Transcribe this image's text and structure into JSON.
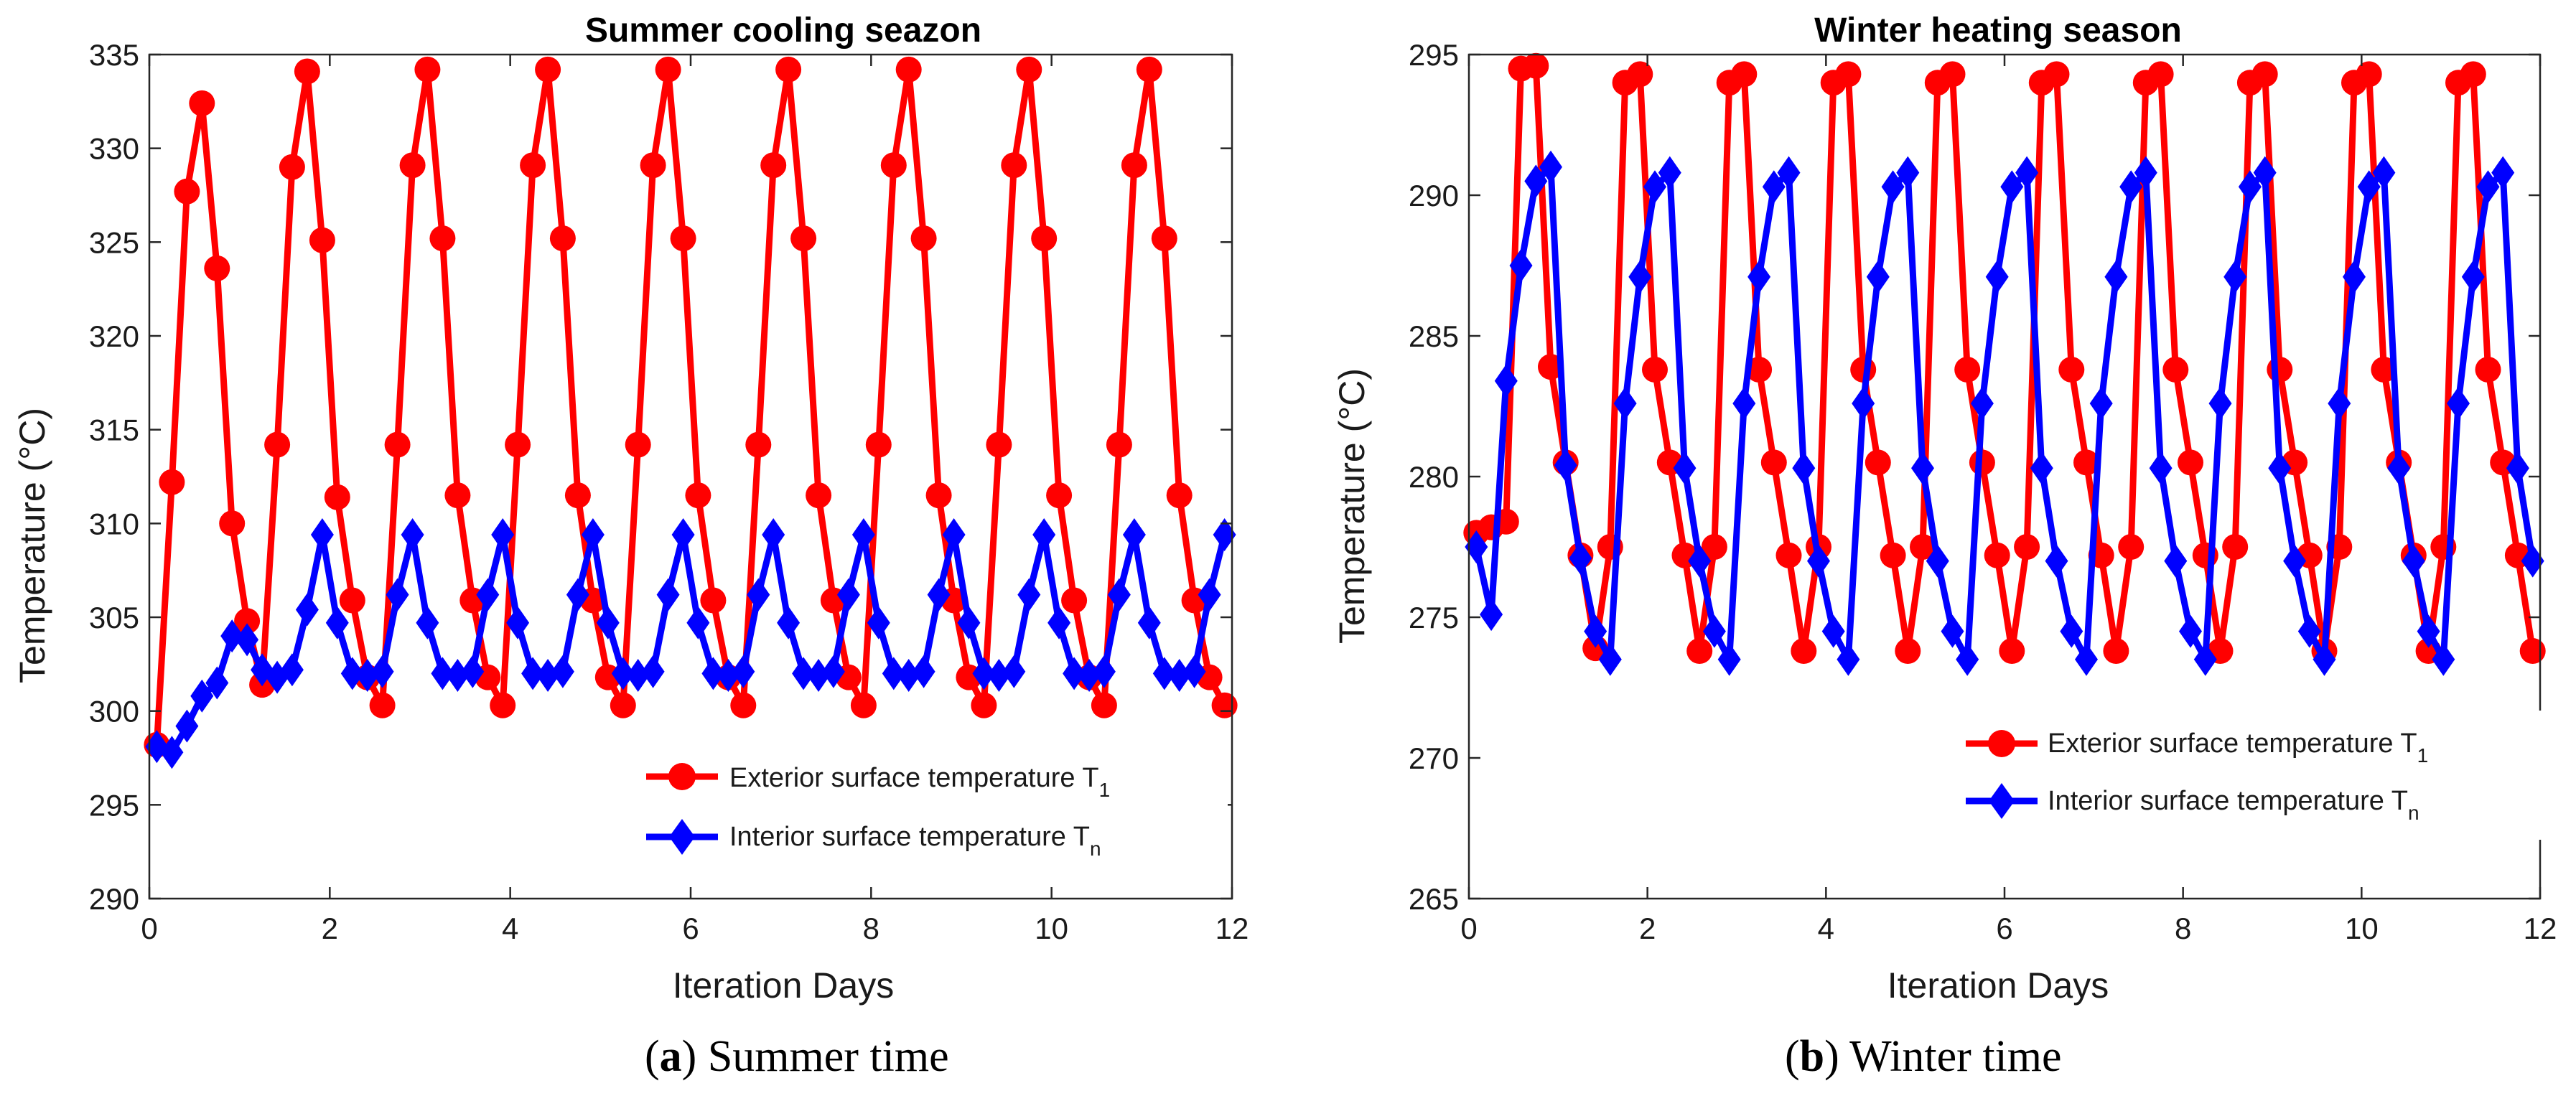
{
  "colors": {
    "exterior": "#ff0000",
    "interior": "#0000ff",
    "axis": "#262626"
  },
  "chart_data": [
    {
      "id": "a",
      "type": "line",
      "title": "Summer cooling seazon",
      "xlabel": "Iteration Days",
      "ylabel": "Temperature (°C)",
      "xlim": [
        0,
        12
      ],
      "ylim": [
        290,
        335
      ],
      "xticks": [
        0,
        2,
        4,
        6,
        8,
        10,
        12
      ],
      "yticks": [
        290,
        295,
        300,
        305,
        310,
        315,
        320,
        325,
        330,
        335
      ],
      "legend_position": "lower-right",
      "caption": {
        "label": "(a)",
        "text": "Summer time"
      },
      "series": [
        {
          "name": "Exterior surface temperature T",
          "subscript": "1",
          "marker": "circle",
          "x": [
            0.083,
            0.25,
            0.417,
            0.583,
            0.75,
            0.917,
            1.083,
            1.25,
            1.417,
            1.583,
            1.75,
            1.917,
            2.083,
            2.25,
            2.417,
            2.583,
            2.75,
            2.917,
            3.083,
            3.25,
            3.417,
            3.583,
            3.75,
            3.917,
            4.083,
            4.25,
            4.417,
            4.583,
            4.75,
            4.917,
            5.083,
            5.25,
            5.417,
            5.583,
            5.75,
            5.917,
            6.083,
            6.25,
            6.417,
            6.583,
            6.75,
            6.917,
            7.083,
            7.25,
            7.417,
            7.583,
            7.75,
            7.917,
            8.083,
            8.25,
            8.417,
            8.583,
            8.75,
            8.917,
            9.083,
            9.25,
            9.417,
            9.583,
            9.75,
            9.917,
            10.083,
            10.25,
            10.417,
            10.583,
            10.75,
            10.917,
            11.083,
            11.25,
            11.417,
            11.583,
            11.75,
            11.917
          ],
          "y": [
            298.2,
            312.2,
            327.7,
            332.4,
            323.6,
            310.0,
            304.8,
            301.4,
            314.2,
            329.0,
            334.1,
            325.1,
            311.4,
            305.9,
            301.8,
            300.3,
            314.2,
            329.1,
            334.2,
            325.2,
            311.5,
            305.9,
            301.8,
            300.3,
            314.2,
            329.1,
            334.2,
            325.2,
            311.5,
            305.9,
            301.8,
            300.3,
            314.2,
            329.1,
            334.2,
            325.2,
            311.5,
            305.9,
            301.8,
            300.3,
            314.2,
            329.1,
            334.2,
            325.2,
            311.5,
            305.9,
            301.8,
            300.3,
            314.2,
            329.1,
            334.2,
            325.2,
            311.5,
            305.9,
            301.8,
            300.3,
            314.2,
            329.1,
            334.2,
            325.2,
            311.5,
            305.9,
            301.8,
            300.3,
            314.2,
            329.1,
            334.2,
            325.2,
            311.5,
            305.9,
            301.8,
            300.3
          ]
        },
        {
          "name": "Interior surface temperature T",
          "subscript": "n",
          "marker": "diamond",
          "x": [
            0.083,
            0.25,
            0.417,
            0.583,
            0.75,
            0.917,
            1.083,
            1.25,
            1.417,
            1.583,
            1.75,
            1.917,
            2.083,
            2.25,
            2.417,
            2.583,
            2.75,
            2.917,
            3.083,
            3.25,
            3.417,
            3.583,
            3.75,
            3.917,
            4.083,
            4.25,
            4.417,
            4.583,
            4.75,
            4.917,
            5.083,
            5.25,
            5.417,
            5.583,
            5.75,
            5.917,
            6.083,
            6.25,
            6.417,
            6.583,
            6.75,
            6.917,
            7.083,
            7.25,
            7.417,
            7.583,
            7.75,
            7.917,
            8.083,
            8.25,
            8.417,
            8.583,
            8.75,
            8.917,
            9.083,
            9.25,
            9.417,
            9.583,
            9.75,
            9.917,
            10.083,
            10.25,
            10.417,
            10.583,
            10.75,
            10.917,
            11.083,
            11.25,
            11.417,
            11.583,
            11.75,
            11.917
          ],
          "y": [
            298.1,
            297.8,
            299.2,
            300.8,
            301.5,
            304.0,
            303.8,
            302.2,
            301.8,
            302.2,
            305.4,
            309.4,
            304.7,
            302.0,
            301.9,
            302.1,
            306.2,
            309.4,
            304.7,
            302.0,
            301.9,
            302.1,
            306.2,
            309.4,
            304.7,
            302.0,
            301.9,
            302.1,
            306.2,
            309.4,
            304.7,
            302.0,
            301.9,
            302.1,
            306.2,
            309.4,
            304.7,
            302.0,
            301.9,
            302.1,
            306.2,
            309.4,
            304.7,
            302.0,
            301.9,
            302.1,
            306.2,
            309.4,
            304.7,
            302.0,
            301.9,
            302.1,
            306.2,
            309.4,
            304.7,
            302.0,
            301.9,
            302.1,
            306.2,
            309.4,
            304.7,
            302.0,
            301.9,
            302.1,
            306.2,
            309.4,
            304.7,
            302.0,
            301.9,
            302.1,
            306.2,
            309.4
          ]
        }
      ]
    },
    {
      "id": "b",
      "type": "line",
      "title": "Winter heating season",
      "xlabel": "Iteration Days",
      "ylabel": "Temperature (°C)",
      "xlim": [
        0,
        12
      ],
      "ylim": [
        265,
        295
      ],
      "xticks": [
        0,
        2,
        4,
        6,
        8,
        10,
        12
      ],
      "yticks": [
        265,
        270,
        275,
        280,
        285,
        290,
        295
      ],
      "legend_position": "lower-right",
      "caption": {
        "label": "(b)",
        "text": "Winter time"
      },
      "series": [
        {
          "name": "Exterior surface temperature T",
          "subscript": "1",
          "marker": "circle",
          "x": [
            0.083,
            0.25,
            0.417,
            0.583,
            0.75,
            0.917,
            1.083,
            1.25,
            1.417,
            1.583,
            1.75,
            1.917,
            2.083,
            2.25,
            2.417,
            2.583,
            2.75,
            2.917,
            3.083,
            3.25,
            3.417,
            3.583,
            3.75,
            3.917,
            4.083,
            4.25,
            4.417,
            4.583,
            4.75,
            4.917,
            5.083,
            5.25,
            5.417,
            5.583,
            5.75,
            5.917,
            6.083,
            6.25,
            6.417,
            6.583,
            6.75,
            6.917,
            7.083,
            7.25,
            7.417,
            7.583,
            7.75,
            7.917,
            8.083,
            8.25,
            8.417,
            8.583,
            8.75,
            8.917,
            9.083,
            9.25,
            9.417,
            9.583,
            9.75,
            9.917,
            10.083,
            10.25,
            10.417,
            10.583,
            10.75,
            10.917,
            11.083,
            11.25,
            11.417,
            11.583,
            11.75,
            11.917
          ],
          "y": [
            278.0,
            278.2,
            278.4,
            294.5,
            294.6,
            283.9,
            280.5,
            277.2,
            273.9,
            277.5,
            294.0,
            294.3,
            283.8,
            280.5,
            277.2,
            273.8,
            277.5,
            294.0,
            294.3,
            283.8,
            280.5,
            277.2,
            273.8,
            277.5,
            294.0,
            294.3,
            283.8,
            280.5,
            277.2,
            273.8,
            277.5,
            294.0,
            294.3,
            283.8,
            280.5,
            277.2,
            273.8,
            277.5,
            294.0,
            294.3,
            283.8,
            280.5,
            277.2,
            273.8,
            277.5,
            294.0,
            294.3,
            283.8,
            280.5,
            277.2,
            273.8,
            277.5,
            294.0,
            294.3,
            283.8,
            280.5,
            277.2,
            273.8,
            277.5,
            294.0,
            294.3,
            283.8,
            280.5,
            277.2,
            273.8,
            277.5,
            294.0,
            294.3,
            283.8,
            280.5,
            277.2,
            273.8
          ]
        },
        {
          "name": "Interior surface temperature T",
          "subscript": "n",
          "marker": "diamond",
          "x": [
            0.083,
            0.25,
            0.417,
            0.583,
            0.75,
            0.917,
            1.083,
            1.25,
            1.417,
            1.583,
            1.75,
            1.917,
            2.083,
            2.25,
            2.417,
            2.583,
            2.75,
            2.917,
            3.083,
            3.25,
            3.417,
            3.583,
            3.75,
            3.917,
            4.083,
            4.25,
            4.417,
            4.583,
            4.75,
            4.917,
            5.083,
            5.25,
            5.417,
            5.583,
            5.75,
            5.917,
            6.083,
            6.25,
            6.417,
            6.583,
            6.75,
            6.917,
            7.083,
            7.25,
            7.417,
            7.583,
            7.75,
            7.917,
            8.083,
            8.25,
            8.417,
            8.583,
            8.75,
            8.917,
            9.083,
            9.25,
            9.417,
            9.583,
            9.75,
            9.917,
            10.083,
            10.25,
            10.417,
            10.583,
            10.75,
            10.917,
            11.083,
            11.25,
            11.417,
            11.583,
            11.75,
            11.917
          ],
          "y": [
            277.5,
            275.1,
            283.4,
            287.5,
            290.5,
            291.0,
            280.4,
            277.1,
            274.5,
            273.5,
            282.6,
            287.1,
            290.3,
            290.8,
            280.3,
            277.0,
            274.5,
            273.5,
            282.6,
            287.1,
            290.3,
            290.8,
            280.3,
            277.0,
            274.5,
            273.5,
            282.6,
            287.1,
            290.3,
            290.8,
            280.3,
            277.0,
            274.5,
            273.5,
            282.6,
            287.1,
            290.3,
            290.8,
            280.3,
            277.0,
            274.5,
            273.5,
            282.6,
            287.1,
            290.3,
            290.8,
            280.3,
            277.0,
            274.5,
            273.5,
            282.6,
            287.1,
            290.3,
            290.8,
            280.3,
            277.0,
            274.5,
            273.5,
            282.6,
            287.1,
            290.3,
            290.8,
            280.3,
            277.0,
            274.5,
            273.5,
            282.6,
            287.1,
            290.3,
            290.8,
            280.3,
            277.0
          ]
        }
      ]
    }
  ]
}
